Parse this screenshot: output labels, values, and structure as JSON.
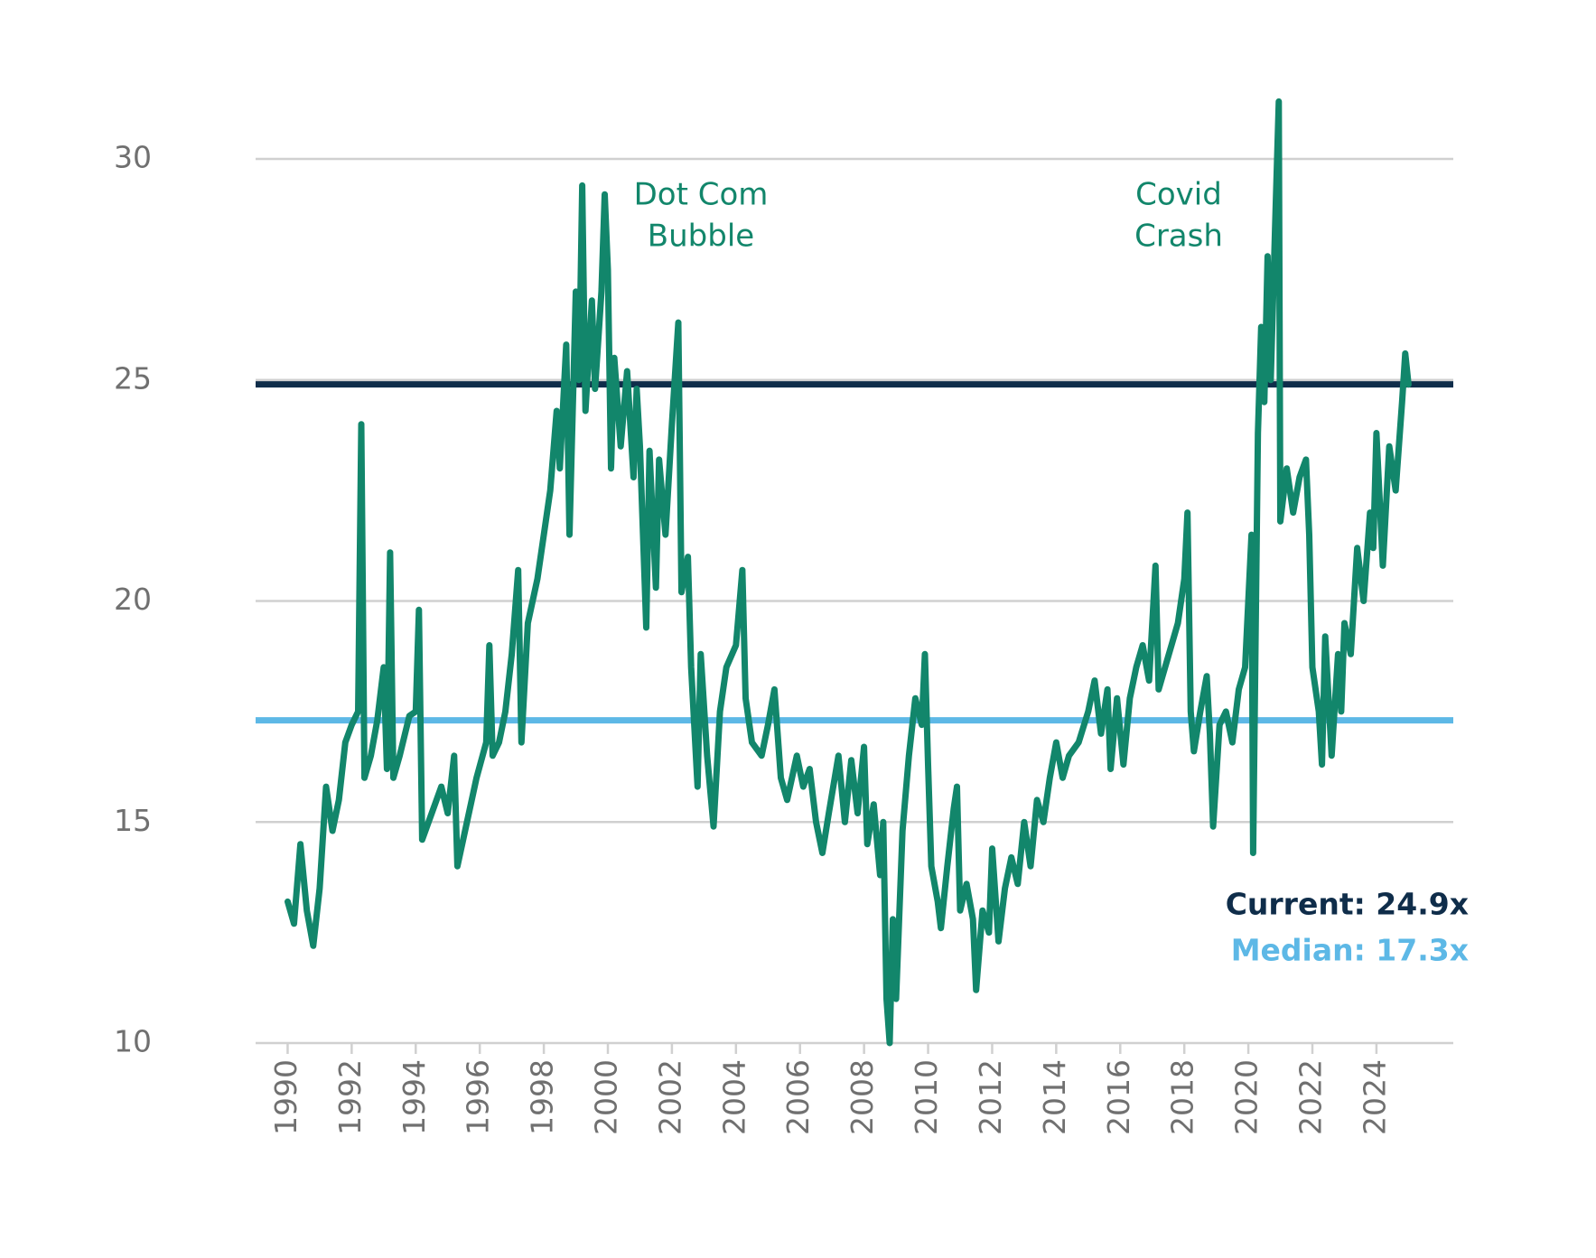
{
  "chart_data": {
    "type": "line",
    "xlim": [
      1989,
      2026.4
    ],
    "xticks": [
      1990,
      1992,
      1994,
      1996,
      1998,
      2000,
      2002,
      2004,
      2006,
      2008,
      2010,
      2012,
      2014,
      2016,
      2018,
      2020,
      2022,
      2024
    ],
    "ylim": [
      10,
      31.5
    ],
    "yticks": [
      10,
      15,
      20,
      25,
      30
    ],
    "grid": true,
    "annotations": [
      [
        "Dot Com",
        "Bubble"
      ],
      [
        "Covid",
        "Crash"
      ]
    ],
    "reference_lines": [
      {
        "label": "Current: 24.9x",
        "value": 24.9,
        "color": "#0f2d4a"
      },
      {
        "label": "Median: 17.3x",
        "value": 17.3,
        "color": "#5db8e6"
      }
    ],
    "series": [
      {
        "color": "#12866b",
        "x": [
          1990.0,
          1990.2,
          1990.4,
          1990.6,
          1990.8,
          1991.0,
          1991.2,
          1991.4,
          1991.6,
          1991.8,
          1992.0,
          1992.2,
          1992.3,
          1992.4,
          1992.6,
          1992.8,
          1993.0,
          1993.1,
          1993.2,
          1993.3,
          1993.5,
          1993.8,
          1994.0,
          1994.1,
          1994.2,
          1994.5,
          1994.8,
          1995.0,
          1995.2,
          1995.3,
          1995.6,
          1995.9,
          1996.2,
          1996.3,
          1996.4,
          1996.6,
          1996.8,
          1997.0,
          1997.2,
          1997.3,
          1997.5,
          1997.8,
          1998.0,
          1998.2,
          1998.4,
          1998.5,
          1998.7,
          1998.8,
          1999.0,
          1999.1,
          1999.2,
          1999.3,
          1999.5,
          1999.6,
          1999.8,
          1999.9,
          2000.0,
          2000.1,
          2000.2,
          2000.4,
          2000.6,
          2000.8,
          2000.9,
          2001.0,
          2001.2,
          2001.3,
          2001.5,
          2001.6,
          2001.8,
          2002.0,
          2002.2,
          2002.3,
          2002.5,
          2002.6,
          2002.8,
          2002.9,
          2003.1,
          2003.3,
          2003.5,
          2003.7,
          2004.0,
          2004.2,
          2004.3,
          2004.5,
          2004.8,
          2005.0,
          2005.2,
          2005.4,
          2005.6,
          2005.9,
          2006.1,
          2006.3,
          2006.5,
          2006.7,
          2006.9,
          2007.2,
          2007.4,
          2007.6,
          2007.8,
          2008.0,
          2008.1,
          2008.3,
          2008.5,
          2008.6,
          2008.7,
          2008.8,
          2008.9,
          2009.0,
          2009.2,
          2009.4,
          2009.6,
          2009.8,
          2009.9,
          2010.0,
          2010.1,
          2010.3,
          2010.4,
          2010.6,
          2010.8,
          2010.9,
          2011.0,
          2011.2,
          2011.4,
          2011.5,
          2011.7,
          2011.9,
          2012.0,
          2012.2,
          2012.4,
          2012.6,
          2012.8,
          2013.0,
          2013.2,
          2013.4,
          2013.6,
          2013.8,
          2014.0,
          2014.2,
          2014.4,
          2014.7,
          2015.0,
          2015.2,
          2015.4,
          2015.6,
          2015.7,
          2015.9,
          2016.1,
          2016.3,
          2016.5,
          2016.7,
          2016.9,
          2017.1,
          2017.2,
          2017.4,
          2017.6,
          2017.8,
          2018.0,
          2018.1,
          2018.2,
          2018.3,
          2018.5,
          2018.7,
          2018.8,
          2018.9,
          2019.1,
          2019.3,
          2019.5,
          2019.7,
          2019.9,
          2020.1,
          2020.15,
          2020.3,
          2020.4,
          2020.5,
          2020.6,
          2020.7,
          2020.85,
          2020.95,
          2021.0,
          2021.2,
          2021.4,
          2021.6,
          2021.8,
          2021.9,
          2022.0,
          2022.2,
          2022.3,
          2022.4,
          2022.6,
          2022.8,
          2022.9,
          2023.0,
          2023.2,
          2023.4,
          2023.6,
          2023.8,
          2023.9,
          2024.0,
          2024.2,
          2024.4,
          2024.6,
          2024.8,
          2024.9,
          2025.0
        ],
        "values": [
          13.2,
          12.7,
          14.5,
          13.0,
          12.2,
          13.5,
          15.8,
          14.8,
          15.5,
          16.8,
          17.2,
          17.5,
          24.0,
          16.0,
          16.5,
          17.3,
          18.5,
          16.2,
          21.1,
          16.0,
          16.5,
          17.4,
          17.5,
          19.8,
          14.6,
          15.2,
          15.8,
          15.2,
          16.5,
          14.0,
          15.0,
          16.0,
          16.8,
          19.0,
          16.5,
          16.8,
          17.5,
          18.8,
          20.7,
          16.8,
          19.5,
          20.5,
          21.5,
          22.5,
          24.3,
          23.0,
          25.8,
          21.5,
          27.0,
          25.0,
          29.4,
          24.3,
          26.8,
          24.8,
          27.0,
          29.2,
          27.5,
          23.0,
          25.5,
          23.5,
          25.2,
          22.8,
          24.8,
          23.5,
          19.4,
          23.4,
          20.3,
          23.2,
          21.5,
          24.0,
          26.3,
          20.2,
          21.0,
          18.5,
          15.8,
          18.8,
          16.5,
          14.9,
          17.5,
          18.5,
          19.0,
          20.7,
          17.8,
          16.8,
          16.5,
          17.2,
          18.0,
          16.0,
          15.5,
          16.5,
          15.8,
          16.2,
          15.0,
          14.3,
          15.2,
          16.5,
          15.0,
          16.4,
          15.2,
          16.7,
          14.5,
          15.4,
          13.8,
          15.0,
          11.0,
          10.0,
          12.8,
          11.0,
          14.8,
          16.5,
          17.8,
          17.2,
          18.8,
          16.3,
          14.0,
          13.2,
          12.6,
          14.0,
          15.3,
          15.8,
          13.0,
          13.6,
          12.8,
          11.2,
          13.0,
          12.5,
          14.4,
          12.3,
          13.5,
          14.2,
          13.6,
          15.0,
          14.0,
          15.5,
          15.0,
          16.0,
          16.8,
          16.0,
          16.5,
          16.8,
          17.5,
          18.2,
          17.0,
          18.0,
          16.2,
          17.8,
          16.3,
          17.8,
          18.5,
          19.0,
          18.2,
          20.8,
          18.0,
          18.5,
          19.0,
          19.5,
          20.5,
          22.0,
          17.5,
          16.6,
          17.5,
          18.3,
          17.0,
          14.9,
          17.2,
          17.5,
          16.8,
          18.0,
          18.5,
          21.5,
          14.3,
          23.8,
          26.2,
          24.5,
          27.8,
          25.0,
          28.8,
          31.3,
          21.8,
          23.0,
          22.0,
          22.8,
          23.2,
          21.5,
          18.5,
          17.5,
          16.3,
          19.2,
          16.5,
          18.8,
          17.5,
          19.5,
          18.8,
          21.2,
          20.0,
          22.0,
          21.2,
          23.8,
          20.8,
          23.5,
          22.5,
          24.5,
          25.6,
          24.9
        ]
      }
    ]
  }
}
